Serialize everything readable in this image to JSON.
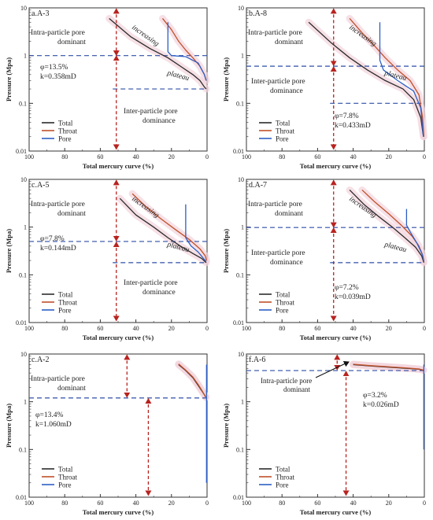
{
  "figure": {
    "legend_labels": [
      "Total",
      "Throat",
      "Pore"
    ],
    "colors": {
      "total": "#2b2b2b",
      "throat": "#c0502a",
      "pore": "#2d5fc4",
      "dash": "#2f4fa8",
      "arrow": "#b8231f",
      "band": "#f2d3dc"
    },
    "y_ticks": [
      "10",
      "1",
      "0.1",
      "0.01"
    ],
    "x_ticks": [
      "100",
      "80",
      "60",
      "40",
      "20",
      "0"
    ]
  },
  "chart_data": [
    {
      "type": "line",
      "panel_label": "a.A-3",
      "xlabel": "Total mercury curve (%)",
      "ylabel": "Pressure (Mpa)",
      "xlim": [
        100,
        0
      ],
      "ylim": [
        0.01,
        10
      ],
      "yscale": "log",
      "grid": false,
      "legend_position": "bottom-left",
      "phi": "φ=13.5%",
      "perm": "k=0.358mD",
      "region_labels": {
        "upper": [
          "Intra-particle pore",
          "dominant"
        ],
        "lower": [
          "Inter-particle pore",
          "dominance"
        ]
      },
      "curve_labels": [
        "increasing",
        "plateau"
      ],
      "thresholds": {
        "upper": 1.0,
        "lower": 0.2,
        "lower_x_start": 53
      },
      "arrows": [
        {
          "x": 51,
          "y_top": 9.5,
          "y_bottom": 1.02
        },
        {
          "x": 51,
          "y_top": 0.98,
          "y_bottom": 0.011
        }
      ],
      "series": [
        {
          "name": "Total",
          "x": [
            55,
            43,
            32,
            22,
            15,
            8,
            4,
            1.5,
            0.5
          ],
          "y": [
            6,
            2.5,
            1.4,
            0.9,
            0.6,
            0.4,
            0.3,
            0.22,
            0.2
          ]
        },
        {
          "name": "Throat",
          "x": [
            25,
            20,
            16,
            12,
            8,
            4,
            1.5,
            0.5
          ],
          "y": [
            6,
            3.5,
            2,
            1.3,
            0.9,
            0.6,
            0.4,
            0.3
          ]
        },
        {
          "name": "Pore",
          "x": [
            22,
            22,
            20,
            12,
            5,
            1.5,
            0.5
          ],
          "y": [
            5,
            1.2,
            1.0,
            0.95,
            0.7,
            0.4,
            0.3
          ]
        }
      ]
    },
    {
      "type": "line",
      "panel_label": "b.A-8",
      "xlabel": "Total mercury curve (%)",
      "ylabel": "Pressure (Mpa)",
      "xlim": [
        100,
        0
      ],
      "ylim": [
        0.01,
        10
      ],
      "yscale": "log",
      "grid": false,
      "legend_position": "bottom-left",
      "phi": "φ=7.8%",
      "perm": "k=0.433mD",
      "region_labels": {
        "upper": [
          "Intra-particle pore",
          "dominant"
        ],
        "lower": [
          "Inter-particle pore",
          "dominance"
        ]
      },
      "curve_labels": [
        "increasing",
        "plateau"
      ],
      "thresholds": {
        "upper": 0.6,
        "lower": 0.1,
        "lower_x_start": 53
      },
      "arrows": [
        {
          "x": 51,
          "y_top": 9.5,
          "y_bottom": 0.62
        },
        {
          "x": 51,
          "y_top": 0.58,
          "y_bottom": 0.011
        }
      ],
      "series": [
        {
          "name": "Total",
          "x": [
            65,
            52,
            42,
            32,
            22,
            12,
            6,
            2,
            0.5
          ],
          "y": [
            5,
            1.8,
            0.9,
            0.5,
            0.3,
            0.2,
            0.12,
            0.05,
            0.02
          ]
        },
        {
          "name": "Throat",
          "x": [
            42,
            35,
            28,
            22,
            15,
            8,
            3,
            1,
            0.3
          ],
          "y": [
            6,
            3,
            1.6,
            0.9,
            0.5,
            0.3,
            0.15,
            0.05,
            0.02
          ]
        },
        {
          "name": "Pore",
          "x": [
            25,
            25,
            23,
            15,
            6,
            2,
            0.5
          ],
          "y": [
            5,
            0.8,
            0.5,
            0.3,
            0.18,
            0.08,
            0.02
          ]
        }
      ]
    },
    {
      "type": "line",
      "panel_label": "c.A-5",
      "xlabel": "Total mercury curve (%)",
      "ylabel": "Pressure (Mpa)",
      "xlim": [
        100,
        0
      ],
      "ylim": [
        0.01,
        10
      ],
      "yscale": "log",
      "grid": false,
      "legend_position": "bottom-left",
      "phi": "φ=7.8%",
      "perm": "k=0.144mD",
      "region_labels": {
        "upper": [
          "Intra-particle pore",
          "dominant"
        ],
        "lower": [
          "Inter-particle pore",
          "dominance"
        ]
      },
      "curve_labels": [
        "increasing",
        "plateau"
      ],
      "thresholds": {
        "upper": 0.5,
        "lower": 0.18,
        "lower_x_start": 53
      },
      "arrows": [
        {
          "x": 51,
          "y_top": 9.5,
          "y_bottom": 0.52
        },
        {
          "x": 51,
          "y_top": 0.48,
          "y_bottom": 0.011
        }
      ],
      "series": [
        {
          "name": "Total",
          "x": [
            49,
            40,
            30,
            22,
            15,
            8,
            3,
            0.5
          ],
          "y": [
            4,
            1.8,
            1.0,
            0.6,
            0.4,
            0.28,
            0.22,
            0.18
          ]
        },
        {
          "name": "Throat",
          "x": [
            42,
            34,
            26,
            18,
            10,
            4,
            1,
            0.3
          ],
          "y": [
            5,
            2.6,
            1.5,
            0.9,
            0.55,
            0.35,
            0.25,
            0.2
          ]
        },
        {
          "name": "Pore",
          "x": [
            12,
            12,
            9,
            5,
            2,
            0.5
          ],
          "y": [
            3,
            0.6,
            0.4,
            0.3,
            0.22,
            0.19
          ]
        }
      ]
    },
    {
      "type": "line",
      "panel_label": "d.A-7",
      "xlabel": "Total mercury curve (%)",
      "ylabel": "Pressure (Mpa)",
      "xlim": [
        100,
        0
      ],
      "ylim": [
        0.01,
        10
      ],
      "yscale": "log",
      "grid": false,
      "legend_position": "bottom-left",
      "phi": "φ=7.2%",
      "perm": "k=0.039mD",
      "region_labels": {
        "upper": [
          "Intra-particle pore",
          "dominant"
        ],
        "lower": [
          "Inter-particle pore",
          "dominance"
        ]
      },
      "curve_labels": [
        "increasing",
        "plateau"
      ],
      "thresholds": {
        "upper": 0.98,
        "lower": 0.18,
        "lower_x_start": 53
      },
      "arrows": [
        {
          "x": 51,
          "y_top": 9.5,
          "y_bottom": 1.0
        },
        {
          "x": 51,
          "y_top": 0.95,
          "y_bottom": 0.011
        }
      ],
      "series": [
        {
          "name": "Total",
          "x": [
            42,
            34,
            26,
            18,
            11,
            5,
            1.5,
            0.3
          ],
          "y": [
            6,
            3,
            1.7,
            1.0,
            0.6,
            0.38,
            0.25,
            0.18
          ]
        },
        {
          "name": "Throat",
          "x": [
            35,
            28,
            20,
            13,
            7,
            3,
            1,
            0.3
          ],
          "y": [
            6,
            3.4,
            1.9,
            1.1,
            0.65,
            0.4,
            0.26,
            0.19
          ]
        },
        {
          "name": "Pore",
          "x": [
            10,
            10,
            8,
            4,
            1,
            0.3
          ],
          "y": [
            2.4,
            1.1,
            0.8,
            0.45,
            0.26,
            0.19
          ]
        }
      ]
    },
    {
      "type": "line",
      "panel_label": "c.A-2",
      "xlabel": "Total mercury curve (%)",
      "ylabel": "Pressure (Mpa)",
      "xlim": [
        100,
        0
      ],
      "ylim": [
        0.01,
        10
      ],
      "yscale": "log",
      "grid": false,
      "legend_position": "bottom-left",
      "phi": "φ=13.4%",
      "perm": "k=1.060mD",
      "region_labels": {
        "upper": [
          "Intra-particle pore",
          "dominant"
        ],
        "lower": [
          "",
          ""
        ]
      },
      "curve_labels": [
        "",
        ""
      ],
      "thresholds": {
        "upper": 1.2,
        "lower": null,
        "lower_x_start": null
      },
      "arrows": [
        {
          "x": 45,
          "y_top": 9.5,
          "y_bottom": 1.25
        },
        {
          "x": 33,
          "y_top": 1.15,
          "y_bottom": 0.011
        }
      ],
      "series": [
        {
          "name": "Total",
          "x": [
            16,
            12,
            8,
            5,
            3,
            1.5,
            0.8
          ],
          "y": [
            6,
            4.5,
            3.2,
            2.2,
            1.7,
            1.4,
            1.25
          ]
        },
        {
          "name": "Throat",
          "x": [
            16,
            12,
            8,
            5,
            3,
            1.5,
            0.8
          ],
          "y": [
            6.2,
            4.6,
            3.3,
            2.3,
            1.75,
            1.4,
            1.25
          ]
        },
        {
          "name": "Pore",
          "x": [
            0.3,
            0.3,
            0.3
          ],
          "y": [
            6,
            1.2,
            0.02
          ]
        }
      ]
    },
    {
      "type": "line",
      "panel_label": "f.A-6",
      "xlabel": "Total mercury curve (%)",
      "ylabel": "Pressure (Mpa)",
      "xlim": [
        100,
        0
      ],
      "ylim": [
        0.01,
        10
      ],
      "yscale": "log",
      "grid": false,
      "legend_position": "bottom-left",
      "phi": "φ=3.2%",
      "perm": "k=0.026mD",
      "region_labels": {
        "upper": [
          "Intra-particle pore",
          "dominant"
        ],
        "lower": [
          "",
          ""
        ]
      },
      "curve_labels": [
        "",
        ""
      ],
      "thresholds": {
        "upper": 4.5,
        "lower": null,
        "lower_x_start": null
      },
      "arrows": [
        {
          "x": 49,
          "y_top": 9.5,
          "y_bottom": 4.7
        },
        {
          "x": 44,
          "y_top": 4.3,
          "y_bottom": 0.011
        }
      ],
      "series": [
        {
          "name": "Total",
          "x": [
            40,
            30,
            20,
            10,
            3,
            0.5
          ],
          "y": [
            6,
            5.6,
            5.3,
            5.0,
            4.8,
            4.6
          ]
        },
        {
          "name": "Throat",
          "x": [
            40,
            30,
            20,
            10,
            3,
            0.5
          ],
          "y": [
            6.1,
            5.7,
            5.4,
            5.1,
            4.85,
            4.6
          ]
        },
        {
          "name": "Pore",
          "x": [
            0.3,
            0.3,
            0.3
          ],
          "y": [
            6,
            4.5,
            0.1
          ]
        }
      ]
    }
  ]
}
